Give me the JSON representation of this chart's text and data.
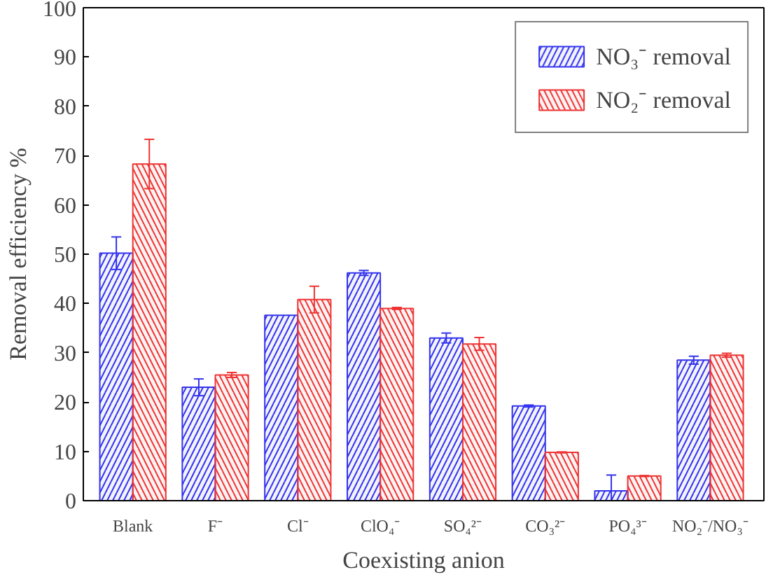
{
  "chart_data": {
    "type": "bar",
    "xlabel": "Coexisting anion",
    "ylabel": "Removal efficiency %",
    "categories": [
      "Blank",
      "F⁻",
      "Cl⁻",
      "ClO₄⁻",
      "SO₄²⁻",
      "CO₃²⁻",
      "PO₄³⁻",
      "NO₂⁻/NO₃⁻"
    ],
    "series": [
      {
        "name": "NO₃⁻ removal",
        "color": "#3333ee",
        "values": [
          50.2,
          23.0,
          37.6,
          46.2,
          33.0,
          19.2,
          2.0,
          28.5
        ],
        "errors": [
          3.3,
          1.7,
          null,
          0.5,
          1.0,
          0.2,
          [
            0,
            5.2
          ],
          0.8
        ]
      },
      {
        "name": "NO₂⁻ removal",
        "color": "#ee3333",
        "values": [
          68.3,
          25.5,
          40.8,
          39.0,
          31.8,
          9.8,
          5.0,
          29.5
        ],
        "errors": [
          5.0,
          0.5,
          2.7,
          0.2,
          1.3,
          0.1,
          0.1,
          0.4
        ]
      }
    ],
    "ylim": [
      0,
      100
    ],
    "yticks": [
      0,
      10,
      20,
      30,
      40,
      50,
      60,
      70,
      80,
      90,
      100
    ],
    "grid": false,
    "legend": "top right"
  }
}
